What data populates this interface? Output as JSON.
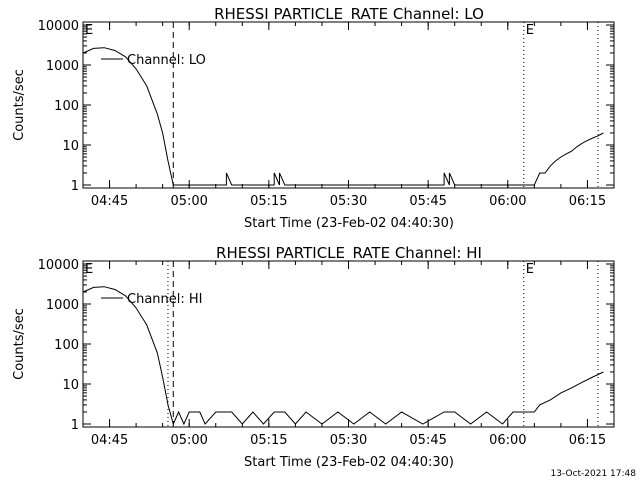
{
  "footer": {
    "timestamp": "13-Oct-2021 17:48"
  },
  "chart_data": [
    {
      "type": "line",
      "title": "RHESSI PARTICLE_RATE Channel: LO",
      "xlabel": "Start Time (23-Feb-02 04:40:30)",
      "ylabel": "Counts/sec",
      "y_scale": "log",
      "ylim": [
        1,
        10000
      ],
      "xlim": [
        "04:40",
        "06:20"
      ],
      "x_tick_labels": [
        "04:45",
        "05:00",
        "05:15",
        "05:30",
        "05:45",
        "06:00",
        "06:15"
      ],
      "y_tick_labels": [
        "1",
        "10",
        "100",
        "1000",
        "10000"
      ],
      "legend": {
        "label": "Channel: LO",
        "placement": "top-left"
      },
      "markers": [
        {
          "label": "E",
          "time": "04:40",
          "style": "none"
        },
        {
          "label": "",
          "time": "04:57",
          "style": "dashed"
        },
        {
          "label": "E",
          "time": "06:03",
          "style": "dotted"
        },
        {
          "label": "",
          "time": "06:17",
          "style": "dotted"
        }
      ],
      "series": [
        {
          "x": [
            "04:40",
            "04:42",
            "04:44",
            "04:46",
            "04:48",
            "04:50",
            "04:52",
            "04:54",
            "04:55",
            "04:56",
            "04:57",
            "05:07",
            "05:07",
            "05:08",
            "05:16",
            "05:16",
            "05:17",
            "05:17",
            "05:18",
            "05:48",
            "05:48",
            "05:49",
            "05:49",
            "05:50",
            "06:05",
            "06:06",
            "06:07",
            "06:08",
            "06:09",
            "06:10",
            "06:11",
            "06:12",
            "06:13",
            "06:14",
            "06:15",
            "06:16",
            "06:17",
            "06:18"
          ],
          "y": [
            2000,
            2600,
            2700,
            2300,
            1600,
            800,
            300,
            60,
            20,
            4,
            1,
            1,
            2,
            1,
            1,
            2,
            1,
            2,
            1,
            1,
            2,
            1,
            2,
            1,
            1,
            2,
            2,
            3,
            4,
            5,
            6,
            7,
            9,
            11,
            13,
            15,
            17,
            20
          ]
        }
      ]
    },
    {
      "type": "line",
      "title": "RHESSI PARTICLE_RATE Channel: HI",
      "xlabel": "Start Time (23-Feb-02 04:40:30)",
      "ylabel": "Counts/sec",
      "y_scale": "log",
      "ylim": [
        1,
        10000
      ],
      "xlim": [
        "04:40",
        "06:20"
      ],
      "x_tick_labels": [
        "04:45",
        "05:00",
        "05:15",
        "05:30",
        "05:45",
        "06:00",
        "06:15"
      ],
      "y_tick_labels": [
        "1",
        "10",
        "100",
        "1000",
        "10000"
      ],
      "legend": {
        "label": "Channel: HI",
        "placement": "top-left"
      },
      "markers": [
        {
          "label": "E",
          "time": "04:40",
          "style": "none"
        },
        {
          "label": "",
          "time": "04:56",
          "style": "dotted"
        },
        {
          "label": "",
          "time": "04:57",
          "style": "dashed"
        },
        {
          "label": "E",
          "time": "06:03",
          "style": "dotted"
        },
        {
          "label": "",
          "time": "06:17",
          "style": "dotted"
        }
      ],
      "series": [
        {
          "x": [
            "04:40",
            "04:42",
            "04:44",
            "04:46",
            "04:48",
            "04:50",
            "04:52",
            "04:54",
            "04:55",
            "04:56",
            "04:57",
            "04:58",
            "04:59",
            "05:00",
            "05:02",
            "05:03",
            "05:05",
            "05:06",
            "05:08",
            "05:10",
            "05:12",
            "05:14",
            "05:16",
            "05:18",
            "05:20",
            "05:22",
            "05:25",
            "05:28",
            "05:31",
            "05:34",
            "05:37",
            "05:40",
            "05:44",
            "05:48",
            "05:50",
            "05:53",
            "05:56",
            "05:59",
            "06:01",
            "06:03",
            "06:05",
            "06:06",
            "06:08",
            "06:10",
            "06:12",
            "06:14",
            "06:16",
            "06:18"
          ],
          "y": [
            2000,
            2600,
            2700,
            2300,
            1600,
            800,
            300,
            60,
            15,
            3,
            1,
            2,
            1,
            2,
            2,
            1,
            2,
            2,
            2,
            1,
            2,
            1,
            2,
            2,
            1,
            2,
            1,
            2,
            1,
            2,
            1,
            2,
            1,
            2,
            2,
            1,
            2,
            1,
            2,
            2,
            2,
            3,
            4,
            6,
            8,
            11,
            15,
            20
          ]
        }
      ]
    }
  ]
}
